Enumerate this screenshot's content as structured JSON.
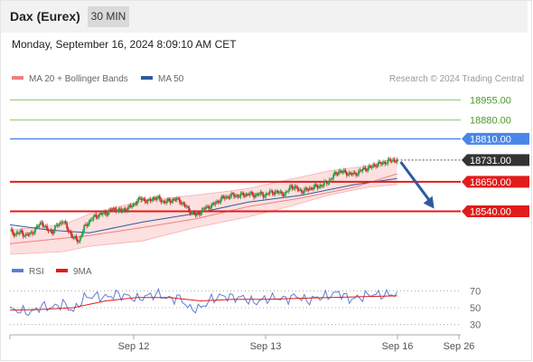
{
  "header": {
    "instrument": "Dax (Eurex)",
    "timeframe": "30 MIN",
    "datetime": "Monday, September 16, 2024 8:09:10 AM CET"
  },
  "legend": {
    "ma20_label": "MA 20 + Bollinger Bands",
    "ma50_label": "MA 50",
    "credit": "Research © 2024 Trading Central"
  },
  "rsi_legend": {
    "rsi_label": "RSI",
    "ma9_label": "9MA"
  },
  "colors": {
    "ma20": "#f08080",
    "ma50": "#2e5aa0",
    "band_fill": "#fde0e0",
    "candle_up": "#2e9e44",
    "candle_down": "#d42a2a",
    "green_level": "#8cc56d",
    "blue_level": "#4a86e8",
    "red_level": "#e21b1b",
    "current_price": "#333333",
    "arrow": "#2e5aa0",
    "rsi": "#5b7fd4",
    "rsi_ma": "#e21b1b"
  },
  "chart_data": [
    {
      "type": "candlestick",
      "title": "Dax (Eurex)",
      "ylim": [
        18370,
        18990
      ],
      "x_ticks": [
        "Sep 12",
        "Sep 13",
        "Sep 16",
        "Sep 26"
      ],
      "price_levels": [
        {
          "value": 18955.0,
          "label": "18955.00",
          "kind": "resistance-green"
        },
        {
          "value": 18880.0,
          "label": "18880.00",
          "kind": "resistance-green"
        },
        {
          "value": 18810.0,
          "label": "18810.00",
          "kind": "resistance-blue"
        },
        {
          "value": 18731.0,
          "label": "18731.00",
          "kind": "current"
        },
        {
          "value": 18650.0,
          "label": "18650.00",
          "kind": "pivot-red"
        },
        {
          "value": 18540.0,
          "label": "18540.00",
          "kind": "support-red"
        }
      ],
      "close_path": [
        [
          0,
          18468
        ],
        [
          4,
          18455
        ],
        [
          8,
          18462
        ],
        [
          12,
          18450
        ],
        [
          16,
          18458
        ],
        [
          20,
          18478
        ],
        [
          24,
          18500
        ],
        [
          28,
          18470
        ],
        [
          32,
          18465
        ],
        [
          36,
          18490
        ],
        [
          40,
          18505
        ],
        [
          44,
          18470
        ],
        [
          48,
          18440
        ],
        [
          52,
          18430
        ],
        [
          56,
          18480
        ],
        [
          60,
          18505
        ],
        [
          64,
          18520
        ],
        [
          68,
          18530
        ],
        [
          72,
          18532
        ],
        [
          76,
          18545
        ],
        [
          80,
          18548
        ],
        [
          84,
          18542
        ],
        [
          88,
          18550
        ],
        [
          92,
          18560
        ],
        [
          96,
          18580
        ],
        [
          100,
          18588
        ],
        [
          104,
          18575
        ],
        [
          108,
          18590
        ],
        [
          112,
          18588
        ],
        [
          116,
          18575
        ],
        [
          120,
          18578
        ],
        [
          124,
          18585
        ],
        [
          128,
          18580
        ],
        [
          132,
          18560
        ],
        [
          136,
          18540
        ],
        [
          140,
          18525
        ],
        [
          144,
          18540
        ],
        [
          148,
          18555
        ],
        [
          152,
          18560
        ],
        [
          156,
          18575
        ],
        [
          160,
          18588
        ],
        [
          164,
          18595
        ],
        [
          168,
          18600
        ],
        [
          172,
          18598
        ],
        [
          176,
          18602
        ],
        [
          180,
          18605
        ],
        [
          184,
          18600
        ],
        [
          188,
          18605
        ],
        [
          192,
          18600
        ],
        [
          196,
          18610
        ],
        [
          200,
          18612
        ],
        [
          204,
          18608
        ],
        [
          208,
          18605
        ],
        [
          212,
          18635
        ],
        [
          216,
          18625
        ],
        [
          220,
          18615
        ],
        [
          224,
          18620
        ],
        [
          228,
          18630
        ],
        [
          232,
          18632
        ],
        [
          236,
          18640
        ],
        [
          240,
          18650
        ],
        [
          244,
          18672
        ],
        [
          248,
          18690
        ],
        [
          252,
          18685
        ],
        [
          256,
          18680
        ],
        [
          260,
          18678
        ],
        [
          264,
          18690
        ],
        [
          268,
          18700
        ],
        [
          272,
          18703
        ],
        [
          276,
          18715
        ],
        [
          280,
          18718
        ],
        [
          284,
          18725
        ],
        [
          288,
          18730
        ],
        [
          292,
          18731
        ]
      ],
      "ma20": [
        [
          0,
          18420
        ],
        [
          60,
          18450
        ],
        [
          100,
          18480
        ],
        [
          140,
          18512
        ],
        [
          180,
          18558
        ],
        [
          220,
          18590
        ],
        [
          260,
          18630
        ],
        [
          292,
          18680
        ]
      ],
      "ma50": [
        [
          0,
          18490
        ],
        [
          30,
          18470
        ],
        [
          60,
          18460
        ],
        [
          100,
          18500
        ],
        [
          140,
          18532
        ],
        [
          180,
          18575
        ],
        [
          220,
          18600
        ],
        [
          260,
          18640
        ],
        [
          292,
          18662
        ]
      ],
      "bollinger_upper": [
        [
          0,
          18470
        ],
        [
          40,
          18490
        ],
        [
          60,
          18530
        ],
        [
          100,
          18580
        ],
        [
          140,
          18600
        ],
        [
          180,
          18625
        ],
        [
          212,
          18660
        ],
        [
          240,
          18690
        ],
        [
          270,
          18710
        ],
        [
          292,
          18740
        ]
      ],
      "bollinger_lower": [
        [
          0,
          18380
        ],
        [
          40,
          18390
        ],
        [
          60,
          18410
        ],
        [
          100,
          18430
        ],
        [
          140,
          18480
        ],
        [
          180,
          18520
        ],
        [
          212,
          18560
        ],
        [
          240,
          18600
        ],
        [
          270,
          18630
        ],
        [
          292,
          18640
        ]
      ],
      "forecast_arrow": {
        "from": [
          292,
          18731
        ],
        "to": [
          320,
          18550
        ]
      }
    },
    {
      "type": "line",
      "title": "RSI",
      "ylim": [
        20,
        80
      ],
      "y_ticks": [
        70,
        50,
        30
      ],
      "series": [
        {
          "name": "RSI",
          "values": [
            [
              0,
              48
            ],
            [
              8,
              46
            ],
            [
              16,
              44
            ],
            [
              24,
              52
            ],
            [
              32,
              50
            ],
            [
              40,
              55
            ],
            [
              48,
              46
            ],
            [
              56,
              62
            ],
            [
              64,
              64
            ],
            [
              72,
              62
            ],
            [
              80,
              66
            ],
            [
              88,
              64
            ],
            [
              96,
              60
            ],
            [
              104,
              64
            ],
            [
              112,
              66
            ],
            [
              120,
              60
            ],
            [
              128,
              62
            ],
            [
              136,
              48
            ],
            [
              144,
              50
            ],
            [
              152,
              60
            ],
            [
              160,
              64
            ],
            [
              168,
              62
            ],
            [
              176,
              62
            ],
            [
              184,
              56
            ],
            [
              192,
              60
            ],
            [
              200,
              62
            ],
            [
              208,
              60
            ],
            [
              216,
              64
            ],
            [
              224,
              58
            ],
            [
              232,
              62
            ],
            [
              240,
              64
            ],
            [
              248,
              68
            ],
            [
              256,
              60
            ],
            [
              264,
              62
            ],
            [
              272,
              66
            ],
            [
              280,
              65
            ],
            [
              288,
              66
            ],
            [
              292,
              66
            ]
          ]
        },
        {
          "name": "9MA",
          "values": [
            [
              0,
              47
            ],
            [
              24,
              48
            ],
            [
              48,
              50
            ],
            [
              72,
              58
            ],
            [
              96,
              62
            ],
            [
              120,
              62
            ],
            [
              144,
              58
            ],
            [
              168,
              60
            ],
            [
              192,
              60
            ],
            [
              216,
              61
            ],
            [
              240,
              62
            ],
            [
              264,
              63
            ],
            [
              292,
              64
            ]
          ]
        }
      ]
    }
  ]
}
